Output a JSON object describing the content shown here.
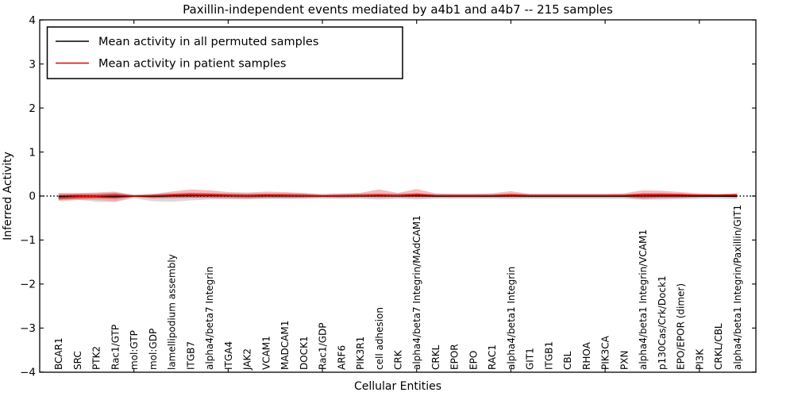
{
  "chart_data": {
    "type": "line",
    "title": "Paxillin-independent events mediated by a4b1 and a4b7 -- 215 samples",
    "xlabel": "Cellular Entities",
    "ylabel": "Inferred Activity",
    "ylim": [
      -4,
      4
    ],
    "ytick_values": [
      4,
      3,
      2,
      1,
      0,
      -1,
      -2,
      -3,
      -4
    ],
    "ytick_labels": [
      "4",
      "3",
      "2",
      "1",
      "0",
      "−1",
      "−2",
      "−3",
      "−4"
    ],
    "xtick_positions": [
      5,
      10,
      15,
      20,
      25,
      30,
      35
    ],
    "grid": false,
    "legend_position": "upper left",
    "categories": [
      "BCAR1",
      "SRC",
      "PTK2",
      "Rac1/GTP",
      "mol:GTP",
      "mol:GDP",
      "lamellipodium assembly",
      "ITGB7",
      "alpha4/beta7 Integrin",
      "ITGA4",
      "JAK2",
      "VCAM1",
      "MADCAM1",
      "DOCK1",
      "Rac1/GDP",
      "ARF6",
      "PIK3R1",
      "cell adhesion",
      "CRK",
      "alpha4/beta7 Integrin/MAdCAM1",
      "CRKL",
      "EPOR",
      "EPO",
      "RAC1",
      "alpha4/beta1 Integrin",
      "GIT1",
      "ITGB1",
      "CBL",
      "RHOA",
      "PIK3CA",
      "PXN",
      "alpha4/beta1 Integrin/VCAM1",
      "p130Cas/Crk/Dock1",
      "EPO/EPOR (dimer)",
      "PI3K",
      "CRKL/CBL",
      "alpha4/beta1 Integrin/Paxillin/GIT1"
    ],
    "series": [
      {
        "name": "Mean activity in all permuted samples",
        "color": "#000000",
        "values": [
          -0.01,
          -0.005,
          -0.01,
          -0.015,
          -0.005,
          -0.005,
          0.005,
          0.01,
          0.01,
          0.008,
          0.005,
          0.008,
          0.005,
          0.005,
          0,
          0.003,
          0.003,
          0.008,
          0.003,
          0.008,
          0,
          0,
          0,
          0,
          0.003,
          0,
          0,
          0,
          0,
          0,
          0,
          0.005,
          0.003,
          0.003,
          0,
          -0.003,
          -0.005
        ]
      },
      {
        "name": "Mean activity in patient samples",
        "color": "#e60000",
        "values": [
          -0.03,
          -0.015,
          -0.005,
          0.01,
          0,
          0.005,
          0.02,
          0.03,
          0.025,
          0.015,
          0.01,
          0.02,
          0.015,
          0.01,
          0.005,
          0.01,
          0.01,
          0.02,
          0.01,
          0.03,
          0.012,
          0.01,
          0.01,
          0.012,
          0.02,
          0.012,
          0.012,
          0.012,
          0.012,
          0.012,
          0.015,
          0.025,
          0.025,
          0.025,
          0.02,
          0.02,
          0.025
        ]
      }
    ],
    "bands": [
      {
        "name": "permuted-range",
        "color": "#bbbbbb",
        "opacity": 0.55,
        "upper": [
          0.06,
          0.06,
          0.07,
          0.08,
          0.04,
          0.05,
          0.07,
          0.08,
          0.07,
          0.06,
          0.06,
          0.06,
          0.06,
          0.06,
          0.05,
          0.05,
          0.06,
          0.07,
          0.06,
          0.07,
          0.05,
          0.05,
          0.05,
          0.05,
          0.06,
          0.05,
          0.05,
          0.05,
          0.05,
          0.05,
          0.05,
          0.06,
          0.06,
          0.06,
          0.05,
          0.05,
          0.06
        ],
        "lower": [
          -0.09,
          -0.08,
          -0.13,
          -0.14,
          -0.05,
          -0.12,
          -0.13,
          -0.1,
          -0.08,
          -0.07,
          -0.07,
          -0.07,
          -0.07,
          -0.06,
          -0.06,
          -0.06,
          -0.06,
          -0.08,
          -0.06,
          -0.08,
          -0.06,
          -0.06,
          -0.06,
          -0.06,
          -0.07,
          -0.06,
          -0.06,
          -0.06,
          -0.06,
          -0.06,
          -0.06,
          -0.08,
          -0.08,
          -0.07,
          -0.06,
          -0.06,
          -0.07
        ]
      },
      {
        "name": "patient-outer-range",
        "color": "#ef8e8e",
        "opacity": 0.6,
        "upper": [
          0.07,
          0.07,
          0.08,
          0.1,
          0.02,
          0.05,
          0.1,
          0.15,
          0.13,
          0.09,
          0.08,
          0.1,
          0.09,
          0.07,
          0.04,
          0.06,
          0.07,
          0.15,
          0.07,
          0.16,
          0.06,
          0.05,
          0.05,
          0.06,
          0.11,
          0.05,
          0.05,
          0.05,
          0.05,
          0.05,
          0.06,
          0.13,
          0.12,
          0.09,
          0.06,
          0.04,
          0.06
        ],
        "lower": [
          -0.11,
          -0.09,
          -0.09,
          -0.12,
          -0.025,
          -0.06,
          -0.06,
          -0.05,
          -0.05,
          -0.06,
          -0.07,
          -0.05,
          -0.05,
          -0.05,
          -0.04,
          -0.05,
          -0.04,
          -0.05,
          -0.04,
          -0.05,
          -0.04,
          -0.04,
          -0.04,
          -0.04,
          -0.04,
          -0.04,
          -0.04,
          -0.04,
          -0.04,
          -0.04,
          -0.04,
          -0.08,
          -0.06,
          -0.05,
          -0.04,
          -0.03,
          -0.04
        ]
      },
      {
        "name": "patient-inner-range",
        "color": "#cc3b3b",
        "opacity": 0.75,
        "upper": [
          0.03,
          0.04,
          0.04,
          0.06,
          0.01,
          0.03,
          0.05,
          0.07,
          0.06,
          0.05,
          0.04,
          0.05,
          0.05,
          0.04,
          0.02,
          0.03,
          0.04,
          0.05,
          0.04,
          0.06,
          0.03,
          0.03,
          0.03,
          0.03,
          0.05,
          0.03,
          0.03,
          0.03,
          0.03,
          0.03,
          0.03,
          0.06,
          0.06,
          0.05,
          0.03,
          0.03,
          0.04
        ],
        "lower": [
          -0.08,
          -0.06,
          -0.05,
          -0.06,
          -0.015,
          -0.04,
          -0.03,
          -0.03,
          -0.03,
          -0.03,
          -0.035,
          -0.03,
          -0.03,
          -0.03,
          -0.02,
          -0.025,
          -0.02,
          -0.02,
          -0.02,
          -0.02,
          -0.02,
          -0.02,
          -0.02,
          -0.02,
          -0.02,
          -0.02,
          -0.02,
          -0.02,
          -0.02,
          -0.02,
          -0.02,
          -0.04,
          -0.03,
          -0.03,
          -0.02,
          -0.015,
          -0.02
        ]
      }
    ],
    "zero_line": {
      "value": 0,
      "style": "dotted",
      "color": "#000000"
    }
  }
}
